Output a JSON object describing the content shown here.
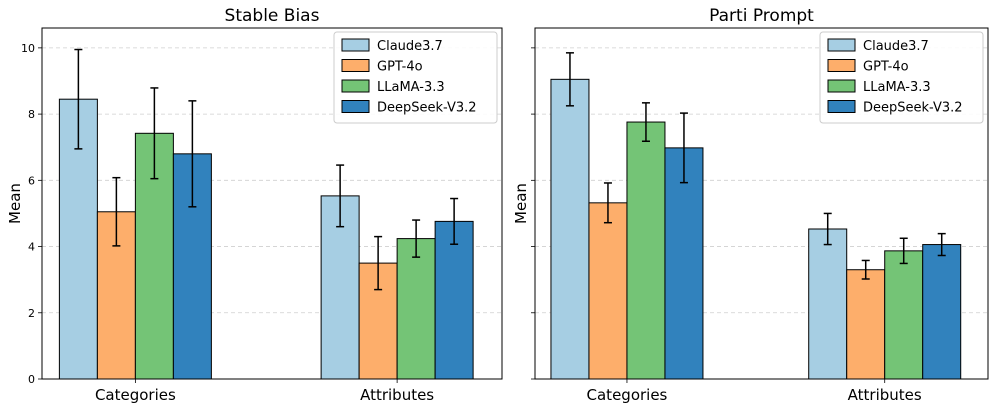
{
  "chart_data": [
    {
      "type": "bar",
      "title": "Stable Bias",
      "xlabel": "",
      "ylabel": "Mean",
      "ylim": [
        0,
        10.6
      ],
      "yticks": [
        0,
        2,
        4,
        6,
        8,
        10
      ],
      "grid": true,
      "legend_position": "top-right",
      "categories": [
        "Categories",
        "Attributes"
      ],
      "series": [
        {
          "name": "Claude3.7",
          "color": "#a6cee3",
          "values": [
            8.45,
            5.53
          ],
          "err": [
            1.5,
            0.93
          ]
        },
        {
          "name": "GPT-4o",
          "color": "#fdae6b",
          "values": [
            5.05,
            3.5
          ],
          "err": [
            1.03,
            0.8
          ]
        },
        {
          "name": "LLaMA-3.3",
          "color": "#74c476",
          "values": [
            7.42,
            4.24
          ],
          "err": [
            1.37,
            0.56
          ]
        },
        {
          "name": "DeepSeek-V3.2",
          "color": "#3182bd",
          "values": [
            6.8,
            4.76
          ],
          "err": [
            1.6,
            0.69
          ]
        }
      ]
    },
    {
      "type": "bar",
      "title": "Parti Prompt",
      "xlabel": "",
      "ylabel": "Mean",
      "ylim": [
        0,
        10.6
      ],
      "yticks": [
        0,
        2,
        4,
        6,
        8,
        10
      ],
      "grid": true,
      "legend_position": "top-right",
      "categories": [
        "Categories",
        "Attributes"
      ],
      "series": [
        {
          "name": "Claude3.7",
          "color": "#a6cee3",
          "values": [
            9.05,
            4.53
          ],
          "err": [
            0.8,
            0.47
          ]
        },
        {
          "name": "GPT-4o",
          "color": "#fdae6b",
          "values": [
            5.32,
            3.3
          ],
          "err": [
            0.6,
            0.28
          ]
        },
        {
          "name": "LLaMA-3.3",
          "color": "#74c476",
          "values": [
            7.76,
            3.87
          ],
          "err": [
            0.58,
            0.38
          ]
        },
        {
          "name": "DeepSeek-V3.2",
          "color": "#3182bd",
          "values": [
            6.98,
            4.06
          ],
          "err": [
            1.05,
            0.33
          ]
        }
      ]
    }
  ]
}
